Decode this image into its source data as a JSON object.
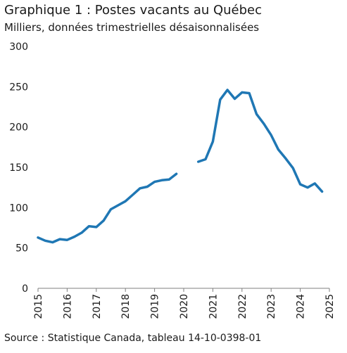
{
  "chart_data": {
    "type": "line",
    "title": "Graphique 1 : Postes vacants au Québec",
    "subtitle": "Milliers, données trimestrielles désaisonnalisées",
    "source": "Source : Statistique Canada, tableau 14-10-0398-01",
    "xlabel": "",
    "ylabel": "",
    "xlim": [
      2015,
      2025
    ],
    "ylim": [
      0,
      300
    ],
    "y_ticks": [
      "0",
      "50",
      "100",
      "150",
      "200",
      "250",
      "300"
    ],
    "x_ticks": [
      "2015",
      "2016",
      "2017",
      "2018",
      "2019",
      "2020",
      "2021",
      "2022",
      "2023",
      "2024",
      "2025"
    ],
    "grid": false,
    "legend": "none",
    "color": "#1f77b4",
    "series": [
      {
        "x": [
          2015.0,
          2015.25,
          2015.5,
          2015.75,
          2016.0,
          2016.25,
          2016.5,
          2016.75,
          2017.0,
          2017.25,
          2017.5,
          2017.75,
          2018.0,
          2018.25,
          2018.5,
          2018.75,
          2019.0,
          2019.25,
          2019.5,
          2019.75
        ],
        "y": [
          63,
          59,
          57,
          61,
          60,
          64,
          69,
          77,
          76,
          84,
          98,
          103,
          108,
          116,
          124,
          126,
          132,
          134,
          135,
          142
        ]
      },
      {
        "x": [
          2020.5,
          2020.75,
          2021.0,
          2021.25,
          2021.5,
          2021.75,
          2022.0,
          2022.25,
          2022.5,
          2022.75,
          2023.0,
          2023.25,
          2023.5,
          2023.75,
          2024.0,
          2024.25,
          2024.5,
          2024.75
        ],
        "y": [
          157,
          160,
          182,
          234,
          246,
          235,
          243,
          242,
          216,
          204,
          190,
          172,
          161,
          149,
          129,
          125,
          130,
          120
        ]
      }
    ]
  }
}
